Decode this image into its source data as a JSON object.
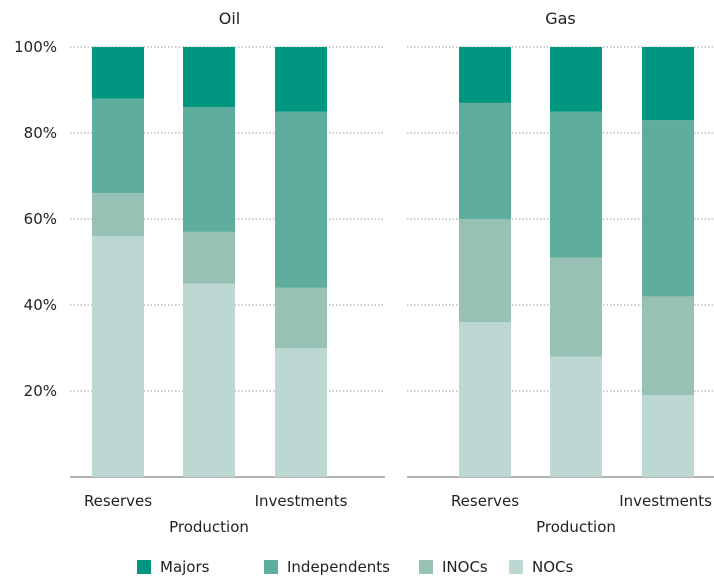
{
  "chart_data": {
    "type": "bar",
    "stacked": true,
    "normalized": true,
    "y_ticks": [
      "20%",
      "40%",
      "60%",
      "80%",
      "100%"
    ],
    "ylim": [
      0,
      100
    ],
    "grid": "horizontal dotted",
    "legend_position": "bottom",
    "categories": [
      "Reserves",
      "Production",
      "Investments"
    ],
    "series_names": [
      "Majors",
      "Independents",
      "INOCs",
      "NOCs"
    ],
    "colors": {
      "Majors": "#00967f",
      "Independents": "#5fae9d",
      "INOCs": "#96c1b4",
      "NOCs": "#bdd8d2"
    },
    "panels": [
      {
        "title": "Oil",
        "series": [
          {
            "name": "NOCs",
            "values": [
              56,
              45,
              30
            ]
          },
          {
            "name": "INOCs",
            "values": [
              10,
              12,
              14
            ]
          },
          {
            "name": "Independents",
            "values": [
              22,
              29,
              41
            ]
          },
          {
            "name": "Majors",
            "values": [
              12,
              14,
              15
            ]
          }
        ]
      },
      {
        "title": "Gas",
        "series": [
          {
            "name": "NOCs",
            "values": [
              36,
              28,
              19
            ]
          },
          {
            "name": "INOCs",
            "values": [
              24,
              23,
              23
            ]
          },
          {
            "name": "Independents",
            "values": [
              27,
              34,
              41
            ]
          },
          {
            "name": "Majors",
            "values": [
              13,
              15,
              17
            ]
          }
        ]
      }
    ]
  }
}
